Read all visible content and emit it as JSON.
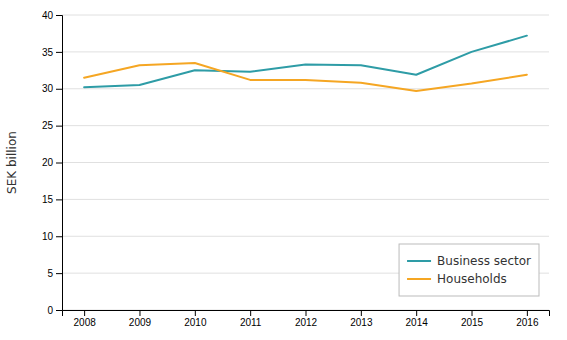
{
  "chart_data": {
    "type": "line",
    "ylabel": "SEK billion",
    "x": [
      2008,
      2009,
      2010,
      2011,
      2012,
      2013,
      2014,
      2015,
      2016
    ],
    "series": [
      {
        "name": "Business sector",
        "color": "#2E9CA6",
        "values": [
          30.2,
          30.5,
          32.5,
          32.3,
          33.3,
          33.2,
          31.9,
          35.0,
          37.2
        ]
      },
      {
        "name": "Households",
        "color": "#F5A623",
        "values": [
          31.5,
          33.2,
          33.5,
          31.2,
          31.2,
          30.8,
          29.7,
          30.7,
          31.9
        ]
      }
    ],
    "xlim": [
      2007.6,
      2016.4
    ],
    "xticks": [
      2008,
      2009,
      2010,
      2011,
      2012,
      2013,
      2014,
      2015,
      2016
    ],
    "ylim": [
      0,
      40
    ],
    "yticks": [
      0,
      5,
      10,
      15,
      20,
      25,
      30,
      35,
      40
    ],
    "grid": true,
    "legend": "lower-right"
  }
}
